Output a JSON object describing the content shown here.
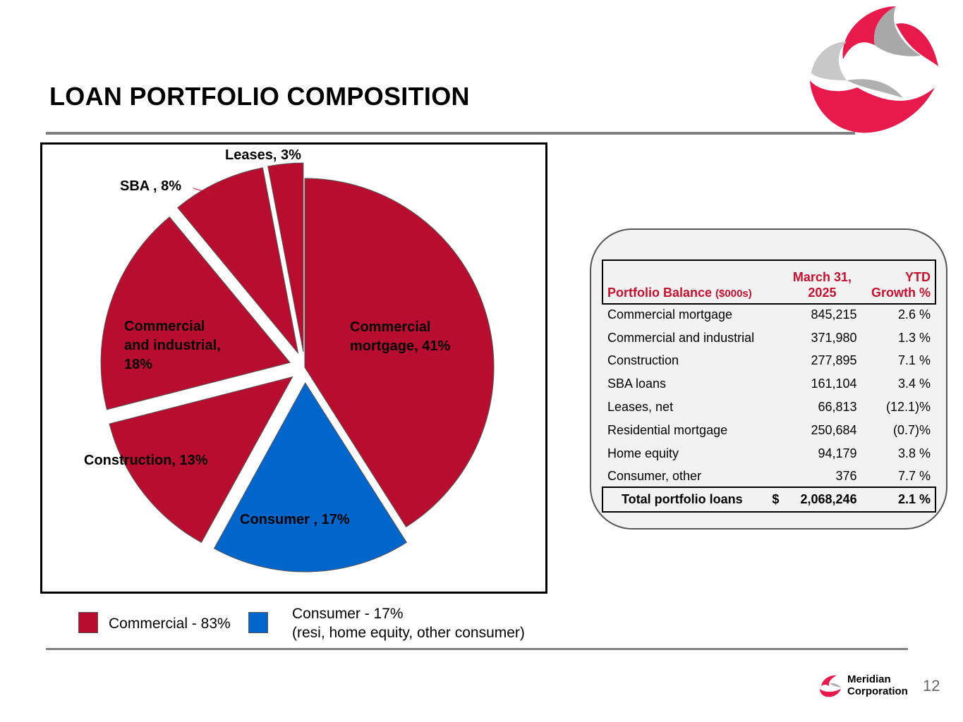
{
  "slide": {
    "title": "LOAN PORTFOLIO COMPOSITION",
    "page_number": "12",
    "company_line1": "Meridian",
    "company_line2": "Corporation"
  },
  "colors": {
    "commercial": "#b80d2f",
    "consumer": "#0066cc",
    "header_text": "#c8102e",
    "rule": "#808080"
  },
  "chart_data": {
    "type": "pie",
    "slices": [
      {
        "label": "Commercial mortgage, 41%",
        "value": 41,
        "group": "commercial",
        "exploded": false
      },
      {
        "label": "Consumer , 17%",
        "value": 17,
        "group": "consumer",
        "exploded": true
      },
      {
        "label": "Construction, 13%",
        "value": 13,
        "group": "commercial",
        "exploded": true
      },
      {
        "label": "Commercial and industrial, 18%",
        "value": 18,
        "group": "commercial",
        "exploded": true
      },
      {
        "label": "SBA , 8%",
        "value": 8,
        "group": "commercial",
        "exploded": true
      },
      {
        "label": "Leases, 3%",
        "value": 3,
        "group": "commercial",
        "exploded": true
      }
    ],
    "legend": [
      {
        "label": "Commercial - 83%",
        "group": "commercial"
      },
      {
        "label": "Consumer - 17%\n(resi, home equity, other consumer)",
        "group": "consumer"
      }
    ]
  },
  "labels": {
    "commercial_mortgage": "Commercial\nmortgage, 41%",
    "consumer": "Consumer , 17%",
    "construction": "Construction, 13%",
    "c_and_i": "Commercial\nand industrial,\n18%",
    "sba": "SBA , 8%",
    "leases": "Leases, 3%"
  },
  "legend": {
    "commercial": "Commercial - 83%",
    "consumer": "Consumer - 17%\n(resi, home equity, other consumer)"
  },
  "table": {
    "header_name": "Portfolio Balance",
    "header_name_unit": "($000s)",
    "header_balance": "March 31,\n2025",
    "header_growth": "YTD\nGrowth %",
    "rows": [
      {
        "name": "Commercial mortgage",
        "balance": "845,215",
        "growth": "2.6 %"
      },
      {
        "name": "Commercial and industrial",
        "balance": "371,980",
        "growth": "1.3 %"
      },
      {
        "name": "Construction",
        "balance": "277,895",
        "growth": "7.1 %"
      },
      {
        "name": "SBA loans",
        "balance": "161,104",
        "growth": "3.4 %"
      },
      {
        "name": "Leases, net",
        "balance": "66,813",
        "growth": "(12.1)%"
      },
      {
        "name": "Residential mortgage",
        "balance": "250,684",
        "growth": "(0.7)%"
      },
      {
        "name": "Home equity",
        "balance": "94,179",
        "growth": "3.8 %"
      },
      {
        "name": "Consumer, other",
        "balance": "376",
        "growth": "7.7 %"
      }
    ],
    "total": {
      "name": "Total portfolio loans",
      "currency": "$",
      "balance": "2,068,246",
      "growth": "2.1 %"
    }
  }
}
